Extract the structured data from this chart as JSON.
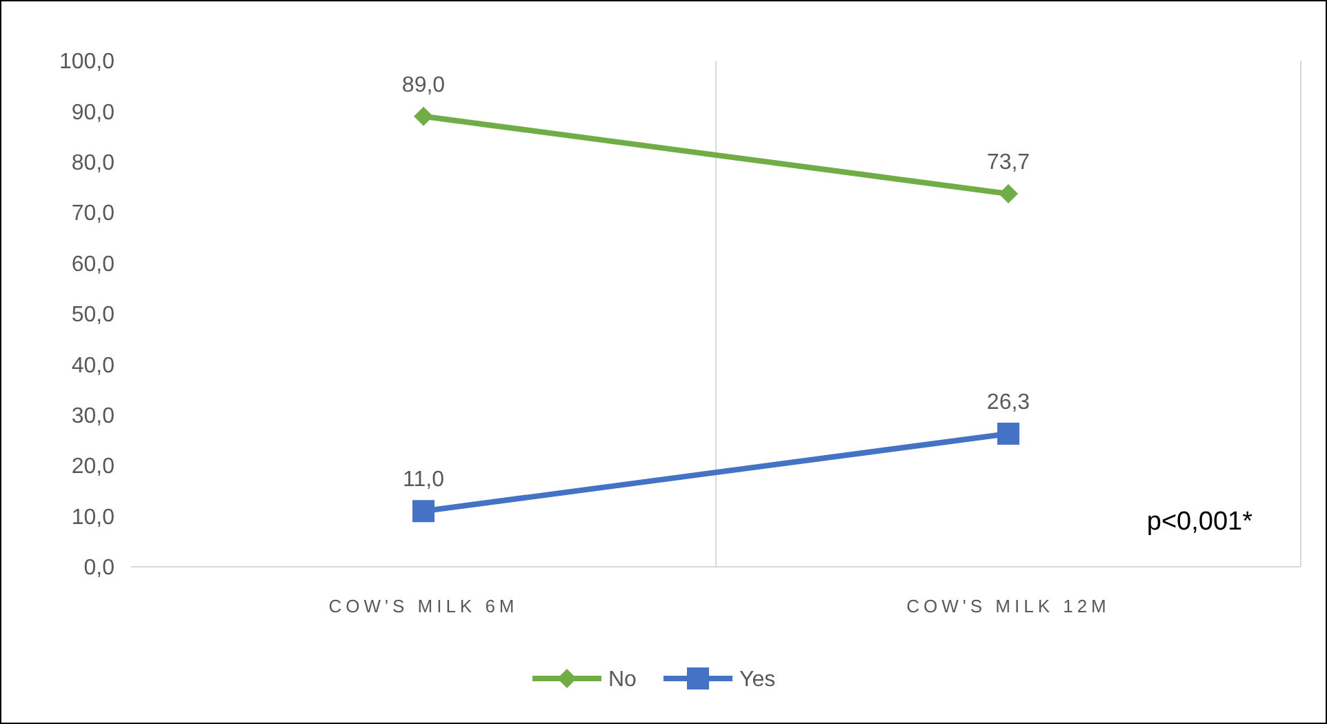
{
  "chart_data": {
    "type": "line",
    "categories": [
      "COW'S MILK 6M",
      "COW'S MILK 12M"
    ],
    "series": [
      {
        "name": "No",
        "color": "#70ad47",
        "values": [
          89.0,
          73.7
        ],
        "value_labels": [
          "89,0",
          "73,7"
        ],
        "marker": "diamond"
      },
      {
        "name": "Yes",
        "color": "#4472c4",
        "values": [
          11.0,
          26.3
        ],
        "value_labels": [
          "11,0",
          "26,3"
        ],
        "marker": "square"
      }
    ],
    "ylim": [
      0,
      100
    ],
    "yticks": [
      {
        "value": 0,
        "label": "0,0"
      },
      {
        "value": 10,
        "label": "10,0"
      },
      {
        "value": 20,
        "label": "20,0"
      },
      {
        "value": 30,
        "label": "30,0"
      },
      {
        "value": 40,
        "label": "40,0"
      },
      {
        "value": 50,
        "label": "50,0"
      },
      {
        "value": 60,
        "label": "60,0"
      },
      {
        "value": 70,
        "label": "70,0"
      },
      {
        "value": 80,
        "label": "80,0"
      },
      {
        "value": 90,
        "label": "90,0"
      },
      {
        "value": 100,
        "label": "100,0"
      }
    ],
    "grid": "x",
    "legend": "bottom",
    "line_style": "solid",
    "annotations": [
      "p<0,001*"
    ]
  }
}
